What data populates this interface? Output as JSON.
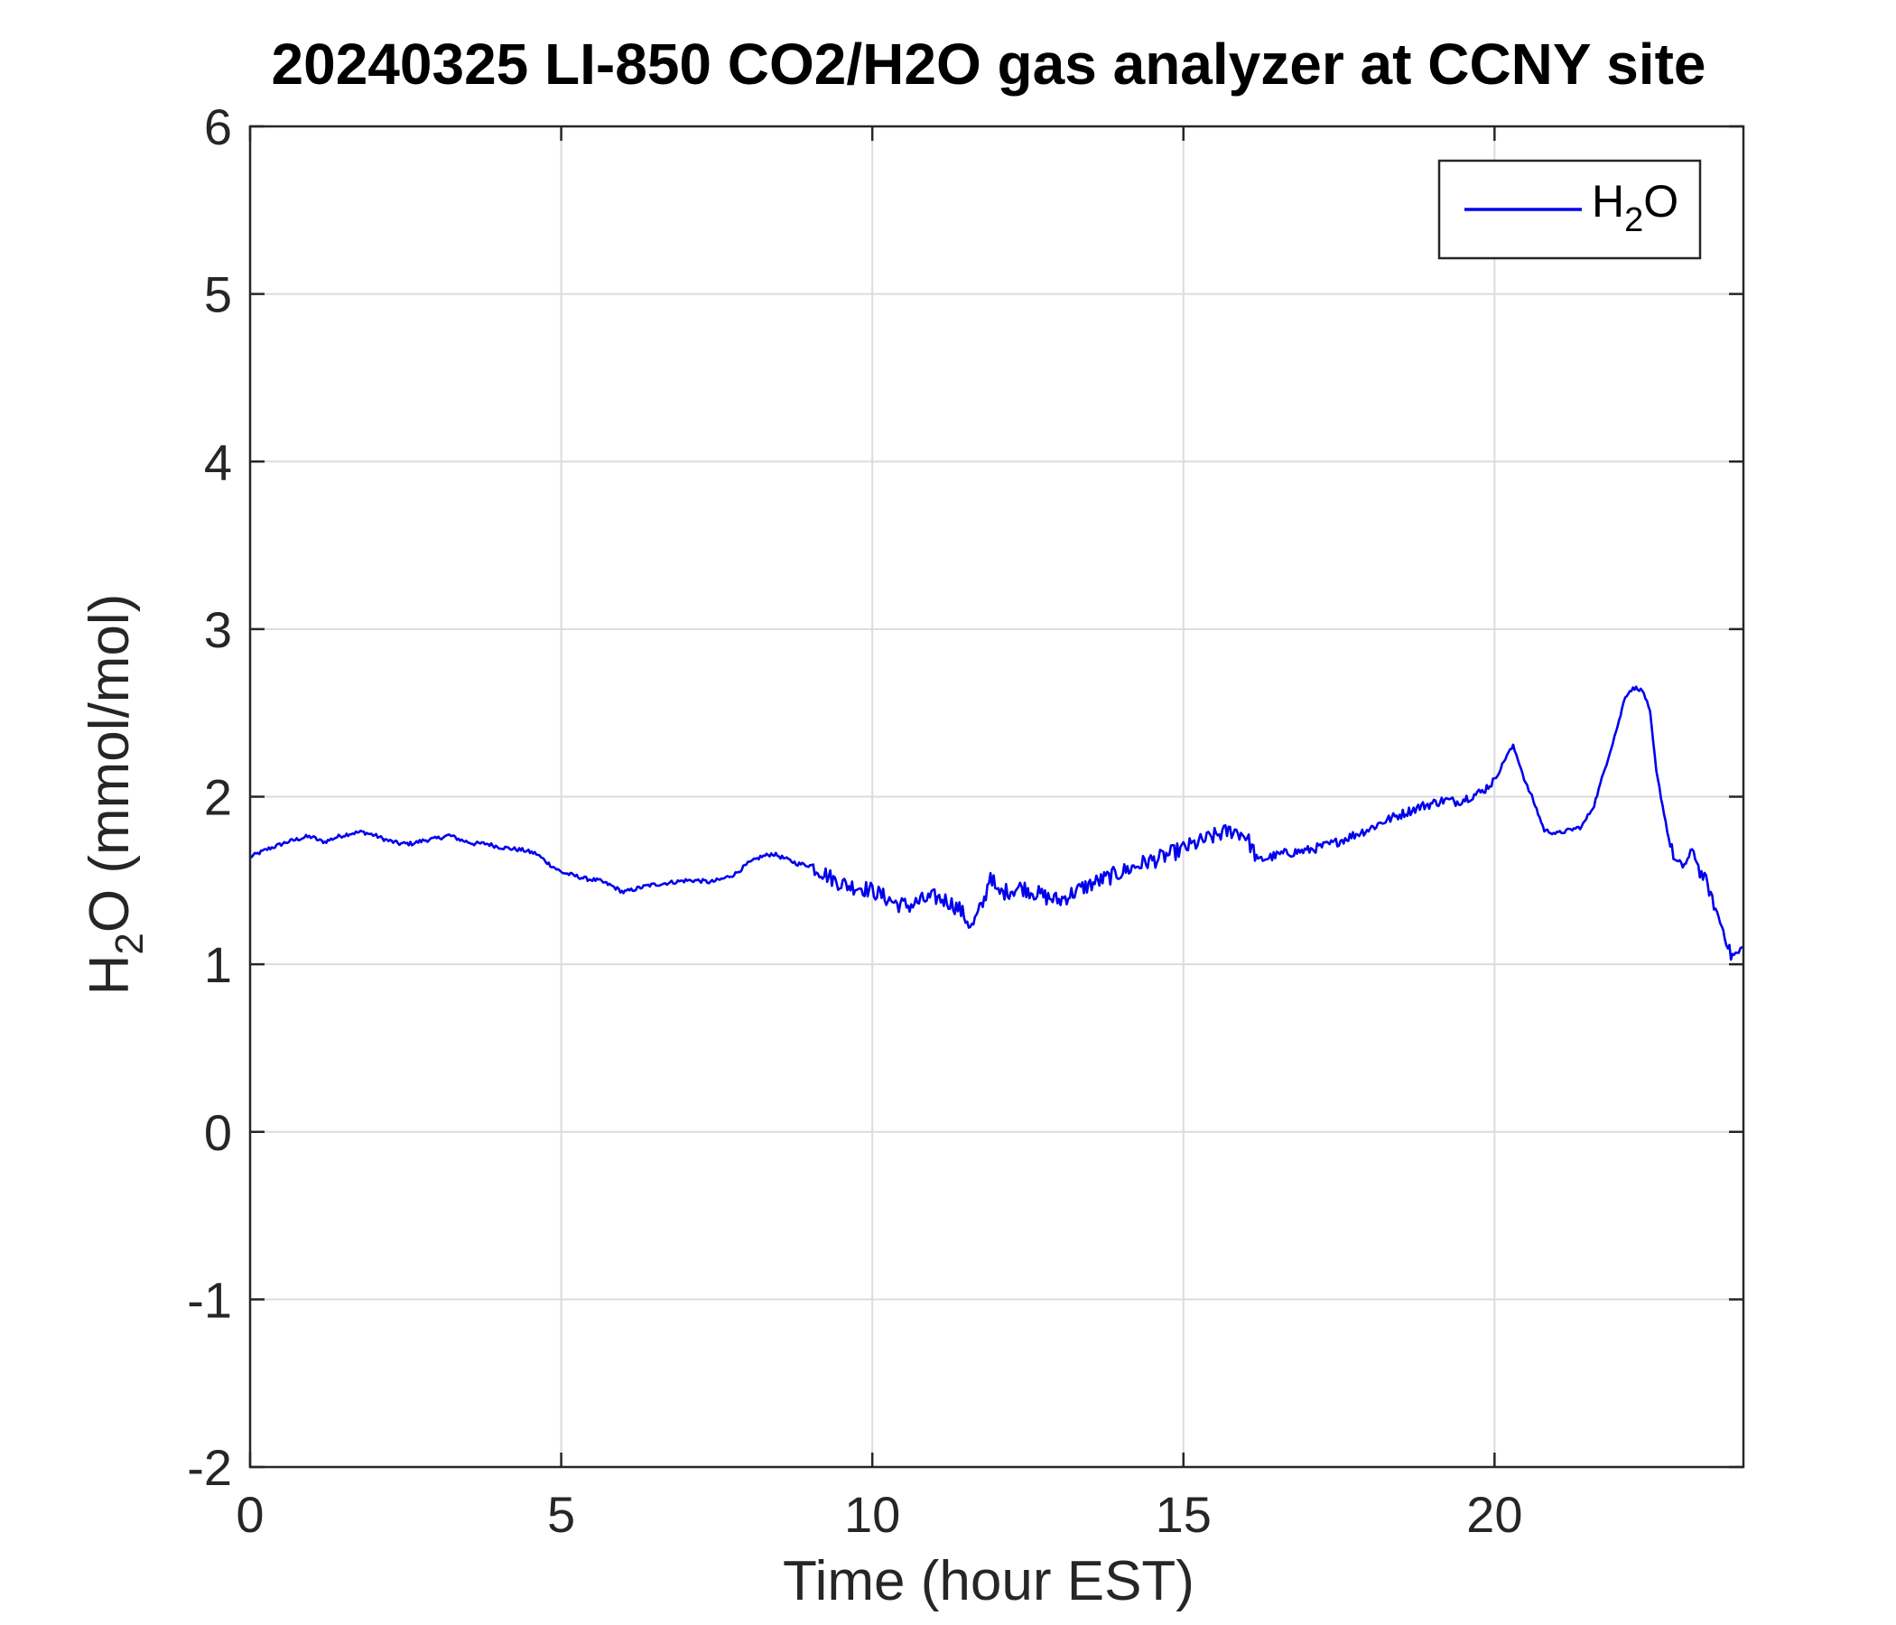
{
  "chart_data": {
    "type": "line",
    "title": "20240325 LI-850 CO2/H2O gas analyzer at CCNY site",
    "xlabel": "Time (hour EST)",
    "ylabel": {
      "main": "H",
      "sub": "2",
      "rest": "O (mmol/mol)"
    },
    "xlim": [
      0,
      24
    ],
    "ylim": [
      -2,
      6
    ],
    "xticks": [
      0,
      5,
      10,
      15,
      20
    ],
    "xtick_labels": [
      "0",
      "5",
      "10",
      "15",
      "20"
    ],
    "yticks": [
      -2,
      -1,
      0,
      1,
      2,
      3,
      4,
      5,
      6
    ],
    "ytick_labels": [
      "-2",
      "-1",
      "0",
      "1",
      "2",
      "3",
      "4",
      "5",
      "6"
    ],
    "grid": true,
    "legend_position": "top-right",
    "series": [
      {
        "name": {
          "main": "H",
          "sub": "2",
          "rest": "O"
        },
        "color": "#0000ee",
        "x": [
          0.0,
          0.3,
          0.6,
          0.9,
          1.0,
          1.1,
          1.2,
          1.4,
          1.6,
          1.8,
          2.0,
          2.2,
          2.4,
          2.6,
          2.8,
          3.0,
          3.2,
          3.4,
          3.6,
          3.8,
          4.0,
          4.2,
          4.4,
          4.6,
          4.8,
          5.0,
          5.2,
          5.4,
          5.6,
          5.8,
          6.0,
          6.2,
          6.4,
          6.6,
          6.8,
          7.0,
          7.2,
          7.4,
          7.6,
          7.8,
          8.0,
          8.2,
          8.4,
          8.6,
          8.8,
          9.0,
          9.2,
          9.4,
          9.6,
          9.8,
          10.0,
          10.2,
          10.4,
          10.6,
          10.8,
          11.0,
          11.2,
          11.4,
          11.6,
          11.8,
          11.9,
          12.0,
          12.2,
          12.4,
          12.6,
          12.8,
          13.0,
          13.2,
          13.4,
          13.6,
          13.8,
          14.0,
          14.2,
          14.4,
          14.6,
          14.8,
          15.0,
          15.2,
          15.4,
          15.6,
          15.8,
          16.0,
          16.2,
          16.4,
          16.6,
          16.8,
          17.0,
          17.2,
          17.4,
          17.6,
          17.8,
          18.0,
          18.2,
          18.4,
          18.6,
          18.8,
          19.0,
          19.2,
          19.4,
          19.6,
          19.8,
          20.0,
          20.1,
          20.2,
          20.3,
          20.4,
          20.5,
          20.6,
          20.8,
          21.0,
          21.2,
          21.4,
          21.6,
          21.8,
          22.0,
          22.1,
          22.2,
          22.3,
          22.4,
          22.5,
          22.6,
          22.7,
          22.8,
          22.9,
          23.0,
          23.1,
          23.2,
          23.3,
          23.4,
          23.5,
          23.6,
          23.7,
          23.8,
          23.9,
          24.0
        ],
        "y": [
          1.64,
          1.69,
          1.73,
          1.76,
          1.76,
          1.74,
          1.73,
          1.76,
          1.78,
          1.79,
          1.77,
          1.74,
          1.72,
          1.72,
          1.74,
          1.75,
          1.77,
          1.74,
          1.72,
          1.72,
          1.7,
          1.69,
          1.68,
          1.66,
          1.6,
          1.55,
          1.53,
          1.51,
          1.5,
          1.47,
          1.43,
          1.45,
          1.47,
          1.48,
          1.49,
          1.5,
          1.5,
          1.49,
          1.51,
          1.54,
          1.6,
          1.64,
          1.66,
          1.63,
          1.6,
          1.59,
          1.55,
          1.5,
          1.47,
          1.46,
          1.44,
          1.4,
          1.36,
          1.35,
          1.38,
          1.4,
          1.38,
          1.33,
          1.22,
          1.38,
          1.55,
          1.42,
          1.44,
          1.46,
          1.43,
          1.4,
          1.38,
          1.42,
          1.46,
          1.49,
          1.52,
          1.55,
          1.58,
          1.61,
          1.63,
          1.66,
          1.69,
          1.72,
          1.75,
          1.78,
          1.8,
          1.77,
          1.62,
          1.64,
          1.66,
          1.67,
          1.68,
          1.7,
          1.72,
          1.75,
          1.78,
          1.81,
          1.85,
          1.88,
          1.91,
          1.94,
          1.96,
          1.98,
          1.97,
          2.0,
          2.03,
          2.1,
          2.17,
          2.25,
          2.3,
          2.2,
          2.08,
          2.0,
          1.8,
          1.78,
          1.8,
          1.82,
          1.95,
          2.2,
          2.45,
          2.6,
          2.64,
          2.65,
          2.62,
          2.5,
          2.15,
          1.95,
          1.75,
          1.62,
          1.58,
          1.62,
          1.68,
          1.55,
          1.5,
          1.38,
          1.28,
          1.18,
          1.05,
          1.06,
          1.1
        ]
      }
    ]
  }
}
